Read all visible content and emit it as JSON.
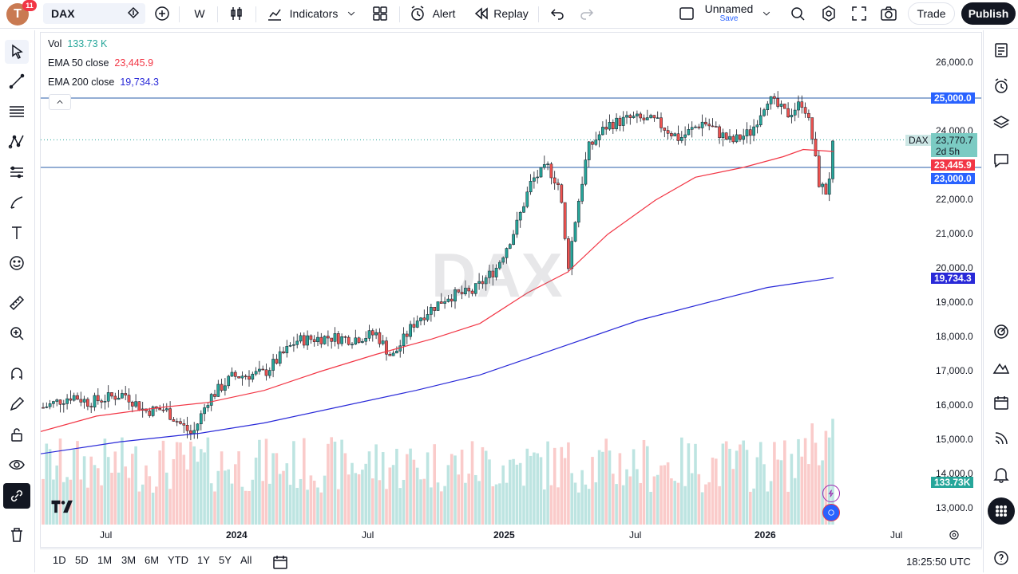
{
  "header": {
    "avatar_letter": "T",
    "notification_count": "11",
    "symbol": "DAX",
    "interval": "W",
    "indicators_label": "Indicators",
    "alert_label": "Alert",
    "replay_label": "Replay",
    "layout_name": "Unnamed",
    "layout_save": "Save",
    "trade_label": "Trade",
    "publish_label": "Publish"
  },
  "legend": {
    "vol_label": "Vol",
    "vol_value": "133.73 K",
    "ema50_label": "EMA 50 close",
    "ema50_value": "23,445.9",
    "ema200_label": "EMA 200 close",
    "ema200_value": "19,734.3"
  },
  "watermark": "DAX",
  "price_axis": [
    "26,000.0",
    "24,000.0",
    "22,000.0",
    "21,000.0",
    "20,000.0",
    "19,000.0",
    "18,000.0",
    "17,000.0",
    "16,000.0",
    "15,000.0",
    "14,000.0",
    "13,000.0"
  ],
  "price_tags": {
    "level_25000": "25,000.0",
    "symbol_tag": "DAX",
    "last_price": "23,770.7",
    "countdown": "2d 5h",
    "ema50": "23,445.9",
    "level_23000": "23,000.0",
    "ema200": "19,734.3",
    "volume": "133.73K"
  },
  "time_axis": [
    "Jul",
    "2024",
    "Jul",
    "2025",
    "Jul",
    "2026",
    "Jul"
  ],
  "timeframes": [
    "1D",
    "5D",
    "1M",
    "3M",
    "6M",
    "YTD",
    "1Y",
    "5Y",
    "All"
  ],
  "clock": "18:25:50 UTC",
  "colors": {
    "up": "#26a69a",
    "down": "#ef5350",
    "ema50": "#f23645",
    "ema200": "#2929d8",
    "hline": "#2a5ea8",
    "accent": "#2962ff"
  }
}
